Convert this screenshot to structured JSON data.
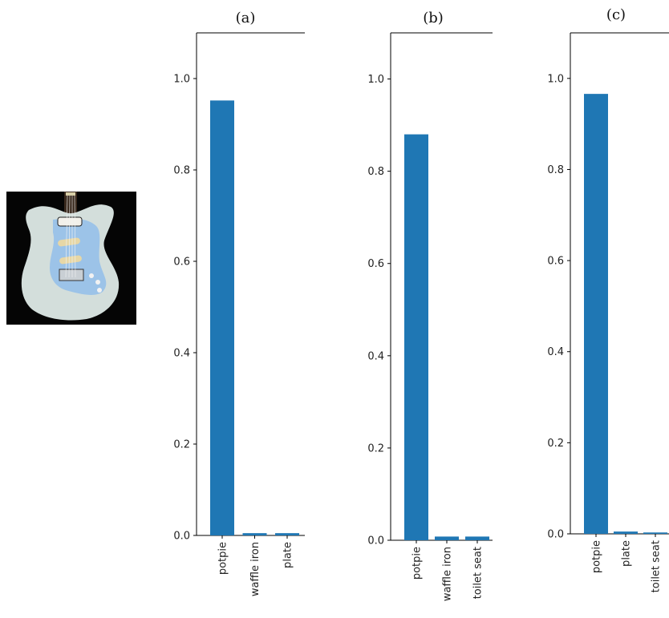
{
  "image": {
    "icon": "electric-guitar-image",
    "colors": {
      "background": "#050505",
      "body": "#d9e3e0",
      "pickguard": "#9cc3e8"
    }
  },
  "chart_data": [
    {
      "type": "bar",
      "title": "(a)",
      "categories": [
        "potpie",
        "waffle iron",
        "plate"
      ],
      "values": [
        0.952,
        0.005,
        0.005
      ],
      "xlabel": "",
      "ylabel": "",
      "ylim": [
        0,
        1.1
      ],
      "yticks": [
        "0.0",
        "0.2",
        "0.4",
        "0.6",
        "0.8",
        "1.0"
      ],
      "bar_color": "#1f77b4"
    },
    {
      "type": "bar",
      "title": "(b)",
      "categories": [
        "potpie",
        "waffle iron",
        "toilet seat"
      ],
      "values": [
        0.88,
        0.008,
        0.008
      ],
      "xlabel": "",
      "ylabel": "",
      "ylim": [
        0,
        1.1
      ],
      "yticks": [
        "0.0",
        "0.2",
        "0.4",
        "0.6",
        "0.8",
        "1.0"
      ],
      "bar_color": "#1f77b4"
    },
    {
      "type": "bar",
      "title": "(c)",
      "categories": [
        "potpie",
        "plate",
        "toilet seat"
      ],
      "values": [
        0.966,
        0.005,
        0.003
      ],
      "xlabel": "",
      "ylabel": "",
      "ylim": [
        0,
        1.1
      ],
      "yticks": [
        "0.0",
        "0.2",
        "0.4",
        "0.6",
        "0.8",
        "1.0"
      ],
      "bar_color": "#1f77b4"
    }
  ]
}
